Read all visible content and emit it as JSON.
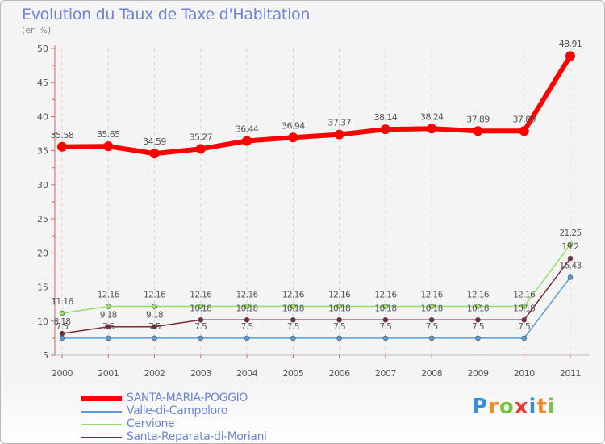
{
  "chart_data": {
    "type": "line",
    "title": "Evolution du Taux de Taxe d'Habitation",
    "subtitle": "(en %)",
    "x": [
      "2000",
      "2001",
      "2002",
      "2003",
      "2004",
      "2005",
      "2006",
      "2007",
      "2008",
      "2009",
      "2010",
      "2011"
    ],
    "ylim": [
      5,
      50
    ],
    "yticks": [
      5,
      10,
      15,
      20,
      25,
      30,
      35,
      40,
      45,
      50
    ],
    "grid": "vertical dashed",
    "legend_position": "bottom-left",
    "series": [
      {
        "name": "SANTA-MARIA-POGGIO",
        "color": "#ff0000",
        "values": [
          35.58,
          35.65,
          34.59,
          35.27,
          36.44,
          36.94,
          37.37,
          38.14,
          38.24,
          37.89,
          37.89,
          48.91
        ],
        "labels": [
          "35.58",
          "35.65",
          "34.59",
          "35.27",
          "36.44",
          "36.94",
          "37.37",
          "38.14",
          "38.24",
          "37.89",
          "37.89",
          "48.91"
        ]
      },
      {
        "name": "Valle-di-Campoloro",
        "color": "#5b9bd5",
        "values": [
          7.5,
          7.5,
          7.5,
          7.5,
          7.5,
          7.5,
          7.5,
          7.5,
          7.5,
          7.5,
          7.5,
          16.43
        ],
        "labels": [
          "7.5",
          "7.5",
          "7.5",
          "7.5",
          "7.5",
          "7.5",
          "7.5",
          "7.5",
          "7.5",
          "7.5",
          "7.5",
          "16.43"
        ]
      },
      {
        "name": "Cervione",
        "color": "#99dd66",
        "values": [
          11.16,
          12.16,
          12.16,
          12.16,
          12.16,
          12.16,
          12.16,
          12.16,
          12.16,
          12.16,
          12.16,
          21.25
        ],
        "labels": [
          "11.16",
          "12.16",
          "12.16",
          "12.16",
          "12.16",
          "12.16",
          "12.16",
          "12.16",
          "12.16",
          "12.16",
          "12.16",
          "21.25"
        ]
      },
      {
        "name": "Santa-Reparata-di-Moriani",
        "color": "#7a2a33",
        "values": [
          8.18,
          9.18,
          9.18,
          10.18,
          10.18,
          10.18,
          10.18,
          10.18,
          10.18,
          10.18,
          10.18,
          19.2
        ],
        "labels": [
          "8.18",
          "9.18",
          "9.18",
          "10.18",
          "10.18",
          "10.18",
          "10.18",
          "10.18",
          "10.18",
          "10.18",
          "10.18",
          "19.2"
        ]
      }
    ]
  },
  "logo": {
    "letters": [
      "P",
      "r",
      "o",
      "x",
      "i",
      "t",
      "i"
    ],
    "colors": [
      "#3a8fd6",
      "#f08a24",
      "#7cc242",
      "#e53935",
      "#3a8fd6",
      "#f08a24",
      "#7cc242"
    ]
  }
}
